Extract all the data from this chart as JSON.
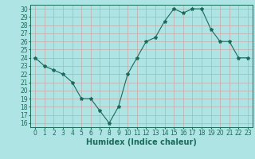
{
  "x": [
    0,
    1,
    2,
    3,
    4,
    5,
    6,
    7,
    8,
    9,
    10,
    11,
    12,
    13,
    14,
    15,
    16,
    17,
    18,
    19,
    20,
    21,
    22,
    23
  ],
  "y": [
    24,
    23,
    22.5,
    22,
    21,
    19,
    19,
    17.5,
    16,
    18,
    22,
    24,
    26,
    26.5,
    28.5,
    30,
    29.5,
    30,
    30,
    27.5,
    26,
    26,
    24,
    24
  ],
  "xlabel": "Humidex (Indice chaleur)",
  "xlim": [
    -0.5,
    23.5
  ],
  "ylim": [
    15.5,
    30.5
  ],
  "yticks": [
    16,
    17,
    18,
    19,
    20,
    21,
    22,
    23,
    24,
    25,
    26,
    27,
    28,
    29,
    30
  ],
  "xticks": [
    0,
    1,
    2,
    3,
    4,
    5,
    6,
    7,
    8,
    9,
    10,
    11,
    12,
    13,
    14,
    15,
    16,
    17,
    18,
    19,
    20,
    21,
    22,
    23
  ],
  "line_color": "#1a6b5a",
  "marker": "*",
  "marker_size": 3,
  "bg_color": "#aee4e4",
  "grid_color": "#c8a8a8",
  "label_fontsize": 7,
  "tick_fontsize": 5.5
}
